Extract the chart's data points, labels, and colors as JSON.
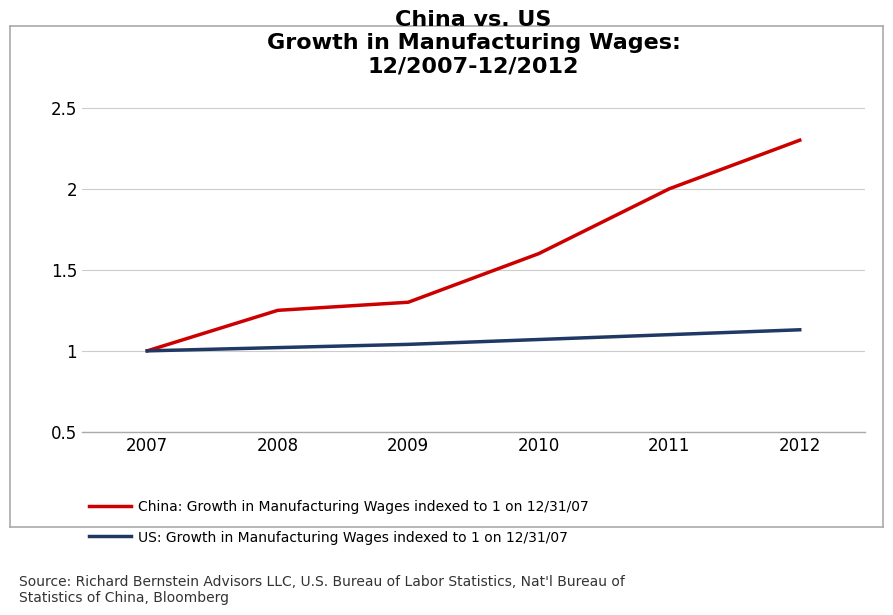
{
  "title": "China vs. US\nGrowth in Manufacturing Wages:\n12/2007-12/2012",
  "title_fontsize": 16,
  "title_fontweight": "bold",
  "years": [
    2007,
    2008,
    2009,
    2010,
    2011,
    2012
  ],
  "china_values": [
    1.0,
    1.25,
    1.3,
    1.6,
    2.0,
    2.3
  ],
  "us_values": [
    1.0,
    1.02,
    1.04,
    1.07,
    1.1,
    1.13
  ],
  "china_color": "#cc0000",
  "us_color": "#1f3864",
  "line_width": 2.5,
  "ylim": [
    0.5,
    2.6
  ],
  "yticks": [
    0.5,
    1.0,
    1.5,
    2.0,
    2.5
  ],
  "xlim": [
    2006.5,
    2012.5
  ],
  "xticks": [
    2007,
    2008,
    2009,
    2010,
    2011,
    2012
  ],
  "tick_fontsize": 12,
  "legend_china": "China: Growth in Manufacturing Wages indexed to 1 on 12/31/07",
  "legend_us": "US: Growth in Manufacturing Wages indexed to 1 on 12/31/07",
  "source_text": "Source: Richard Bernstein Advisors LLC, U.S. Bureau of Labor Statistics, Nat'l Bureau of\nStatistics of China, Bloomberg",
  "source_fontsize": 10,
  "background_color": "#ffffff",
  "plot_bg_color": "#ffffff",
  "border_color": "#aaaaaa",
  "grid_color": "#cccccc",
  "grid_alpha": 1.0
}
